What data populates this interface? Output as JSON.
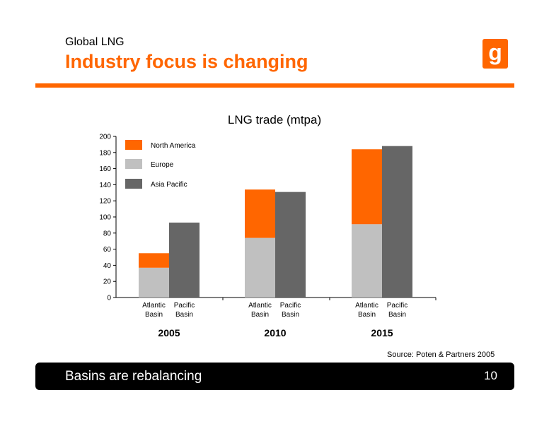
{
  "header": {
    "kicker": "Global LNG",
    "title": "Industry focus is changing",
    "logo_letter": "g"
  },
  "colors": {
    "accent": "#ff6600",
    "north_america": "#ff6600",
    "europe": "#c0c0c0",
    "asia_pacific": "#666666"
  },
  "chart_data": {
    "type": "bar",
    "title": "LNG trade (mtpa)",
    "xlabel": "",
    "ylabel": "",
    "ylim": [
      0,
      200
    ],
    "yticks": [
      0,
      20,
      40,
      60,
      80,
      100,
      120,
      140,
      160,
      180,
      200
    ],
    "legend_position": "top-left",
    "grid": false,
    "series": [
      {
        "name": "North America",
        "color": "#ff6600"
      },
      {
        "name": "Europe",
        "color": "#c0c0c0"
      },
      {
        "name": "Asia Pacific",
        "color": "#666666"
      }
    ],
    "groups": [
      {
        "year": "2005",
        "bars": [
          {
            "label": [
              "Atlantic",
              "Basin"
            ],
            "segments": [
              {
                "series": "Europe",
                "value": 37
              },
              {
                "series": "North America",
                "value": 18
              }
            ]
          },
          {
            "label": [
              "Pacific",
              "Basin"
            ],
            "segments": [
              {
                "series": "Asia Pacific",
                "value": 93
              }
            ]
          }
        ]
      },
      {
        "year": "2010",
        "bars": [
          {
            "label": [
              "Atlantic",
              "Basin"
            ],
            "segments": [
              {
                "series": "Europe",
                "value": 74
              },
              {
                "series": "North America",
                "value": 60
              }
            ]
          },
          {
            "label": [
              "Pacific",
              "Basin"
            ],
            "segments": [
              {
                "series": "Asia Pacific",
                "value": 131
              }
            ]
          }
        ]
      },
      {
        "year": "2015",
        "bars": [
          {
            "label": [
              "Atlantic",
              "Basin"
            ],
            "segments": [
              {
                "series": "Europe",
                "value": 91
              },
              {
                "series": "North America",
                "value": 93
              }
            ]
          },
          {
            "label": [
              "Pacific",
              "Basin"
            ],
            "segments": [
              {
                "series": "Asia Pacific",
                "value": 188
              }
            ]
          }
        ]
      }
    ]
  },
  "source": "Source: Poten & Partners 2005",
  "footer": {
    "text": "Basins are rebalancing",
    "page_number": "10"
  }
}
